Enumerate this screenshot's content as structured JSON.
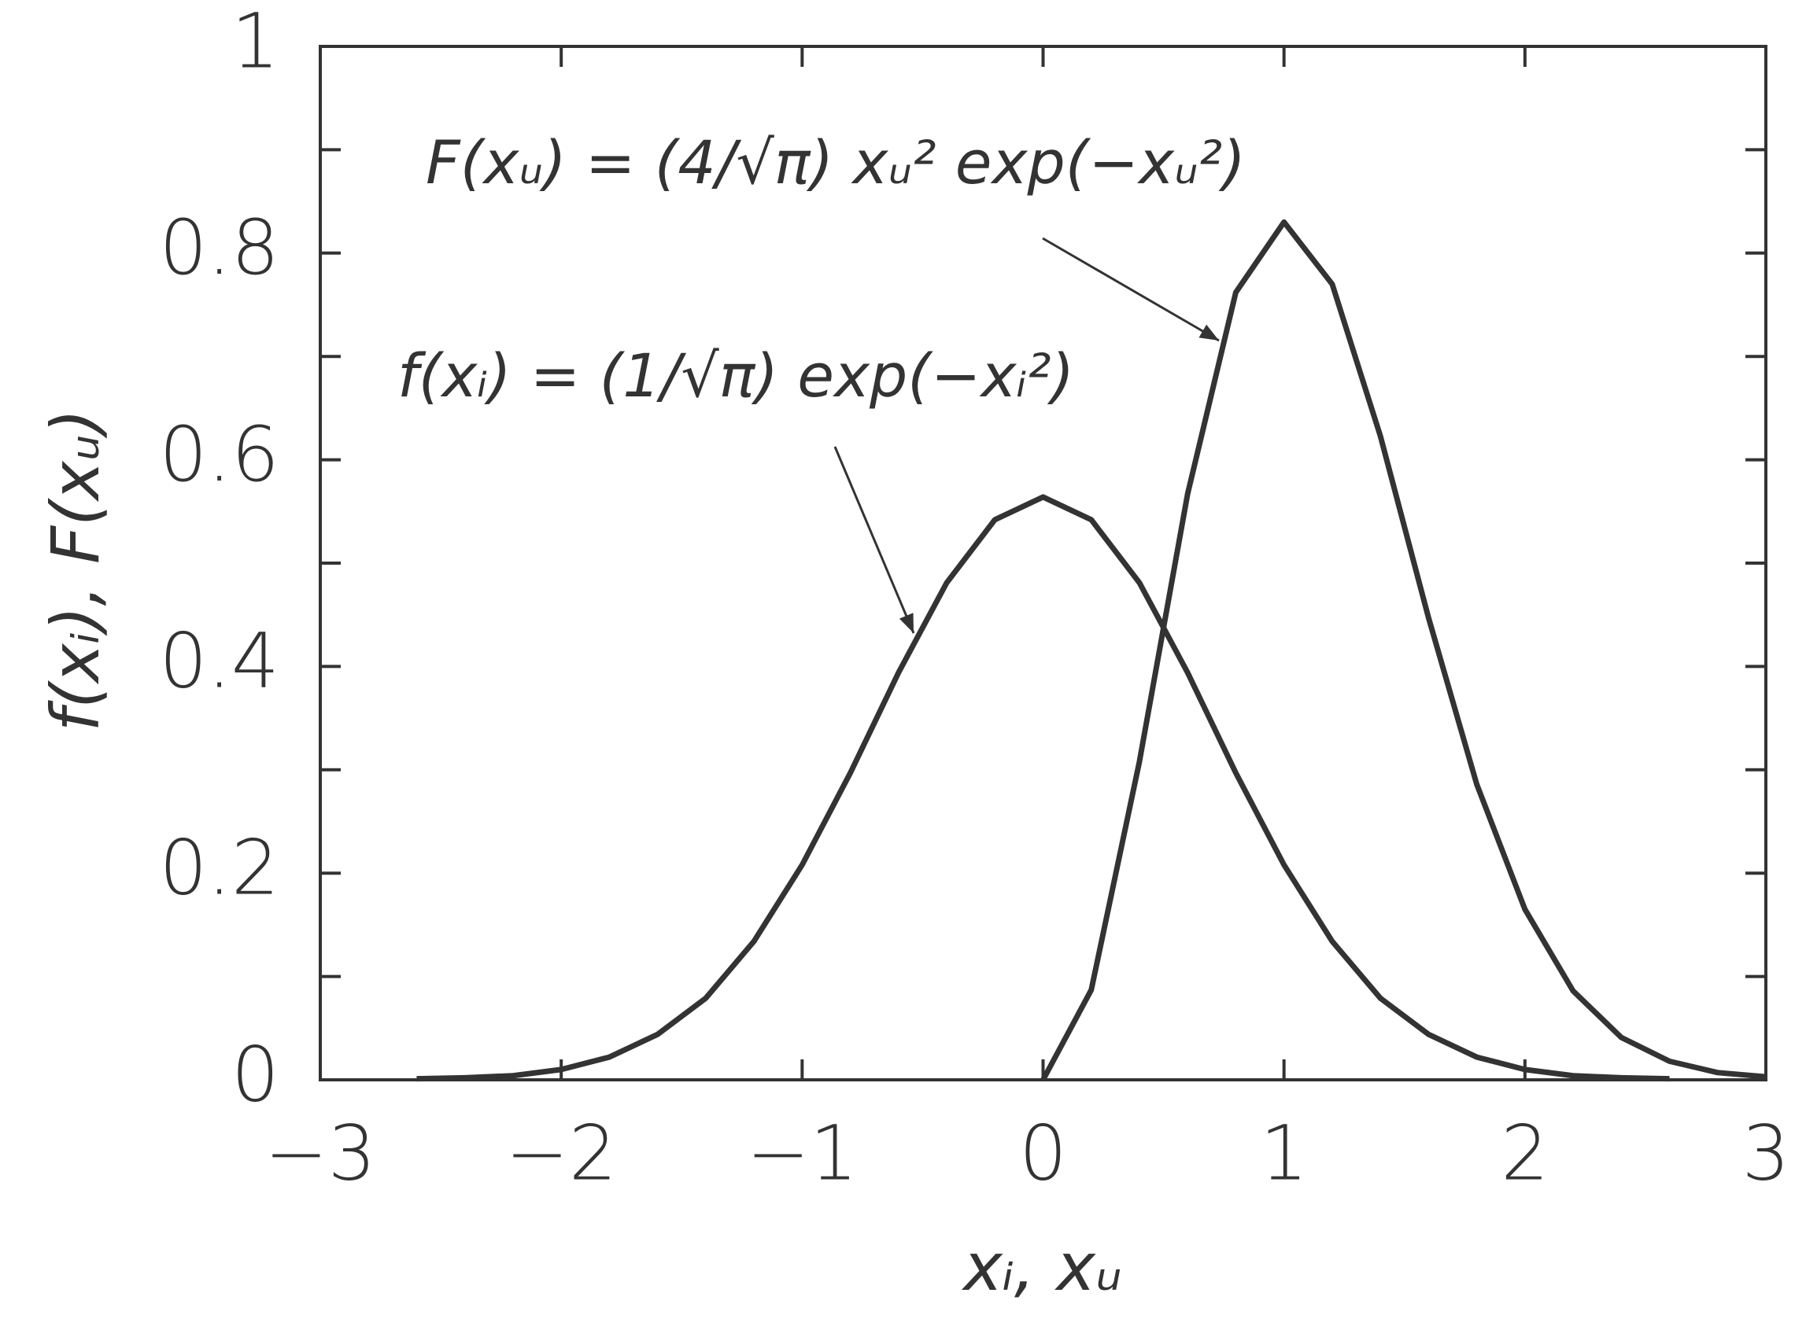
{
  "chart_data": {
    "type": "line",
    "x": [
      -2.6,
      -2.4,
      -2.2,
      -2.0,
      -1.8,
      -1.6,
      -1.4,
      -1.2,
      -1.0,
      -0.8,
      -0.6,
      -0.4,
      -0.2,
      0,
      0.2,
      0.4,
      0.6,
      0.8,
      1.0,
      1.2,
      1.4,
      1.6,
      1.8,
      2.0,
      2.2,
      2.4,
      2.6,
      2.8,
      3.0
    ],
    "series": [
      {
        "color": "#333333",
        "values": [
          0.001,
          0.002,
          0.004,
          0.01,
          0.022,
          0.044,
          0.079,
          0.134,
          0.208,
          0.297,
          0.394,
          0.481,
          0.542,
          0.564,
          0.542,
          0.481,
          0.394,
          0.297,
          0.208,
          0.134,
          0.079,
          0.044,
          0.022,
          0.01,
          0.004,
          0.002,
          0.001,
          null,
          null
        ]
      },
      {
        "color": "#333333",
        "values": [
          null,
          null,
          null,
          null,
          null,
          null,
          null,
          null,
          null,
          null,
          null,
          null,
          null,
          0,
          0.087,
          0.308,
          0.567,
          0.762,
          0.83,
          0.77,
          0.623,
          0.447,
          0.286,
          0.165,
          0.086,
          0.041,
          0.018,
          0.007,
          0.003
        ]
      }
    ],
    "annotations": [
      "F(xᵤ) = (4/√π) xᵤ² exp(−xᵤ²)",
      "f(xᵢ) = (1/√π) exp(−xᵢ²)"
    ],
    "xlabel": "xᵢ, xᵤ",
    "ylabel": "f(xᵢ), F(xᵤ)",
    "xlim": [
      -3,
      3
    ],
    "ylim": [
      0,
      1
    ],
    "xticks": [
      {
        "value": -3,
        "label": "−3"
      },
      {
        "value": -2,
        "label": "−2"
      },
      {
        "value": -1,
        "label": "−1"
      },
      0,
      1,
      2,
      3
    ],
    "yticks": [
      0,
      0.2,
      0.4,
      0.6,
      0.8,
      1
    ],
    "yminorticks": [
      0.1,
      0.3,
      0.5,
      0.7,
      0.9
    ],
    "grid": false
  }
}
